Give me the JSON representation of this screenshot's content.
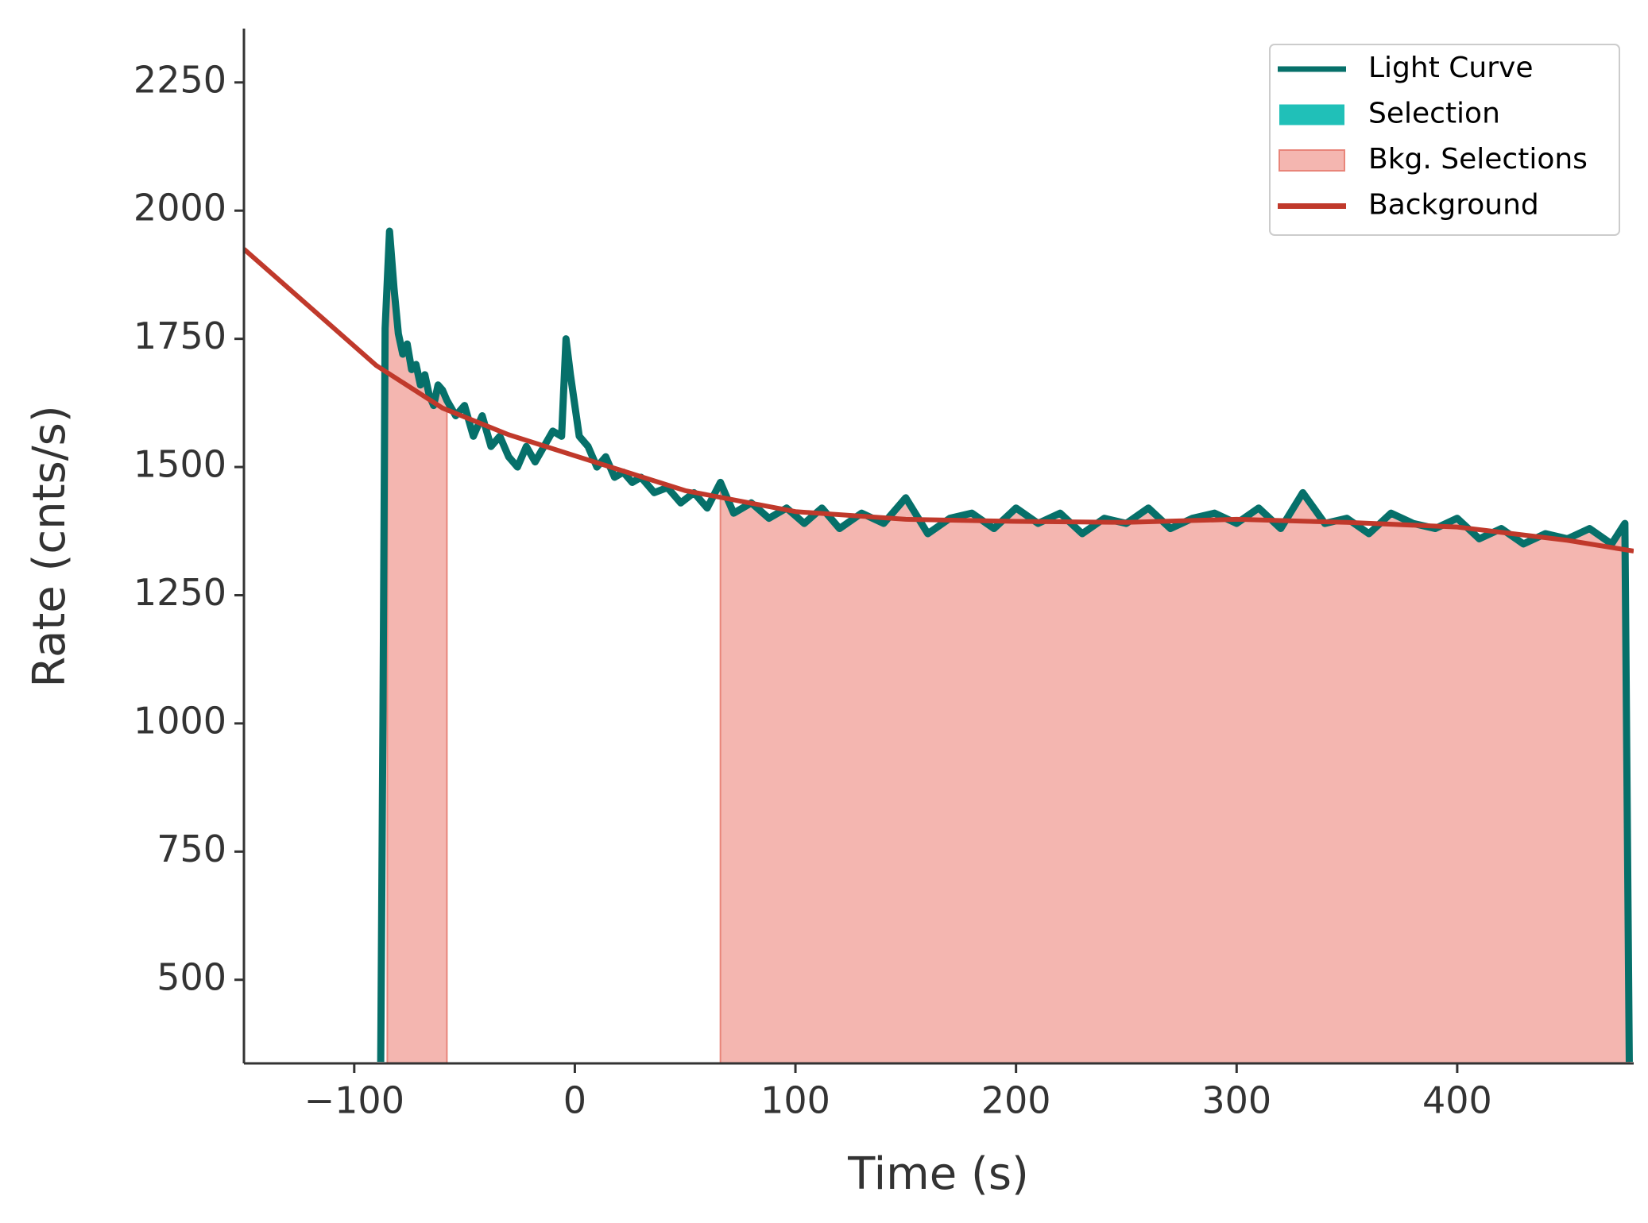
{
  "chart_data": {
    "type": "line",
    "x_label": "Time (s)",
    "y_label": "Rate (cnts/s)",
    "xlim": [
      -150,
      480
    ],
    "ylim": [
      337,
      2355
    ],
    "xticks": [
      {
        "value": -100,
        "label": "−100"
      },
      0,
      100,
      200,
      300,
      400
    ],
    "yticks": [
      500,
      750,
      1000,
      1250,
      1500,
      1750,
      2000,
      2250
    ],
    "legend": "upper right",
    "series": [
      {
        "name": "Light Curve",
        "color": "#06706a",
        "x": [
          -88,
          -87,
          -86,
          -84,
          -82,
          -80,
          -78,
          -76,
          -74,
          -72,
          -70,
          -68,
          -66,
          -64,
          -62,
          -60,
          -58,
          -54,
          -50,
          -46,
          -42,
          -38,
          -34,
          -30,
          -26,
          -22,
          -18,
          -14,
          -10,
          -6,
          -4,
          -2,
          0,
          2,
          6,
          10,
          14,
          18,
          22,
          26,
          30,
          36,
          42,
          48,
          54,
          60,
          66,
          72,
          80,
          88,
          96,
          104,
          112,
          120,
          130,
          140,
          150,
          160,
          170,
          180,
          190,
          200,
          210,
          220,
          230,
          240,
          250,
          260,
          270,
          280,
          290,
          300,
          310,
          320,
          330,
          340,
          350,
          360,
          370,
          380,
          390,
          400,
          410,
          420,
          430,
          440,
          450,
          460,
          470,
          476,
          478
        ],
        "values": [
          340,
          1000,
          1770,
          1960,
          1850,
          1760,
          1720,
          1740,
          1690,
          1700,
          1660,
          1680,
          1640,
          1620,
          1660,
          1650,
          1630,
          1600,
          1620,
          1560,
          1600,
          1540,
          1560,
          1520,
          1500,
          1540,
          1510,
          1540,
          1570,
          1560,
          1750,
          1680,
          1620,
          1560,
          1540,
          1500,
          1520,
          1480,
          1490,
          1470,
          1480,
          1450,
          1460,
          1430,
          1450,
          1420,
          1470,
          1410,
          1430,
          1400,
          1420,
          1390,
          1420,
          1380,
          1410,
          1390,
          1440,
          1370,
          1400,
          1410,
          1380,
          1420,
          1390,
          1410,
          1370,
          1400,
          1390,
          1420,
          1380,
          1400,
          1410,
          1390,
          1420,
          1380,
          1450,
          1390,
          1400,
          1370,
          1410,
          1390,
          1380,
          1400,
          1360,
          1380,
          1350,
          1370,
          1360,
          1380,
          1350,
          1390,
          340
        ]
      },
      {
        "name": "Background",
        "color": "#c0392b",
        "x": [
          -150,
          -90,
          -60,
          -30,
          0,
          50,
          100,
          150,
          200,
          250,
          300,
          350,
          400,
          450,
          480
        ],
        "values": [
          1925,
          1698,
          1615,
          1563,
          1522,
          1454,
          1413,
          1398,
          1394,
          1392,
          1398,
          1392,
          1383,
          1357,
          1336
        ]
      }
    ],
    "selection": {
      "name": "Selection",
      "color": "#20c0b8"
    },
    "bkg_selections": {
      "name": "Bkg. Selections",
      "color": "#f4b6b0",
      "edge_color": "#e8857a",
      "ranges": [
        [
          -85,
          -58
        ],
        [
          66,
          478
        ]
      ]
    }
  }
}
